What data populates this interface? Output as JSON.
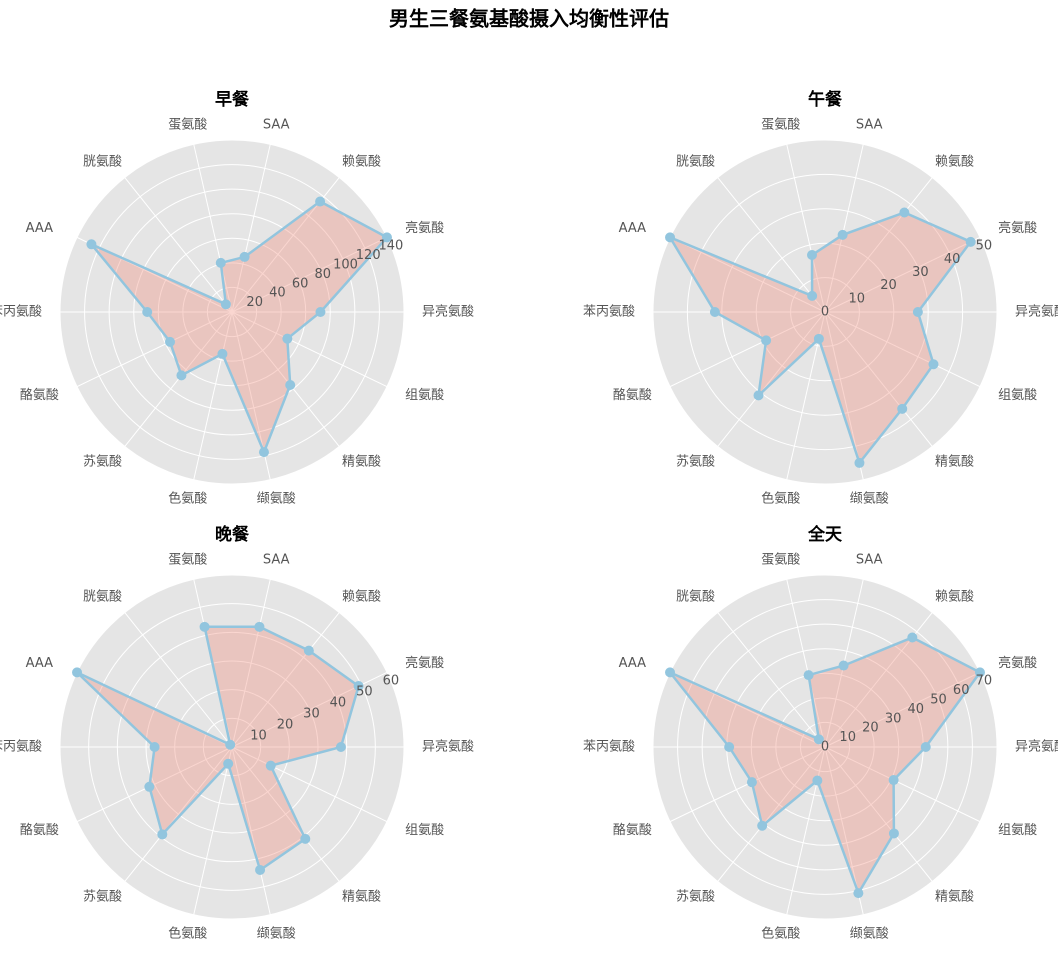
{
  "title": "男生三餐氨基酸摄入均衡性评估",
  "chart_data": [
    {
      "type": "radar",
      "title": "早餐",
      "categories": [
        "异亮氨酸",
        "亮氨酸",
        "赖氨酸",
        "SAA",
        "蛋氨酸",
        "胱氨酸",
        "AAA",
        "苯丙氨酸",
        "酪氨酸",
        "苏氨酸",
        "色氨酸",
        "缬氨酸",
        "精氨酸",
        "组氨酸"
      ],
      "series": [
        {
          "color": "#92c5de",
          "fill_color": "#f08a78",
          "values": [
            72,
            140,
            115,
            46,
            41,
            8,
            127,
            69,
            56,
            66,
            35,
            117,
            76,
            50
          ]
        }
      ],
      "ylim": [
        0,
        140
      ],
      "yticks": [
        20,
        40,
        60,
        80,
        100,
        120,
        140
      ],
      "grid": true
    },
    {
      "type": "radar",
      "title": "午餐",
      "categories": [
        "异亮氨酸",
        "亮氨酸",
        "赖氨酸",
        "SAA",
        "蛋氨酸",
        "胱氨酸",
        "AAA",
        "苯丙氨酸",
        "酪氨酸",
        "苏氨酸",
        "色氨酸",
        "缬氨酸",
        "精氨酸",
        "组氨酸"
      ],
      "series": [
        {
          "color": "#92c5de",
          "fill_color": "#f08a78",
          "values": [
            27,
            47,
            37,
            23,
            17,
            6,
            50,
            32,
            19,
            31,
            8,
            45,
            36,
            35
          ]
        }
      ],
      "ylim": [
        0,
        50
      ],
      "yticks": [
        0,
        10,
        20,
        30,
        40,
        50
      ],
      "grid": true
    },
    {
      "type": "radar",
      "title": "晚餐",
      "categories": [
        "异亮氨酸",
        "亮氨酸",
        "赖氨酸",
        "SAA",
        "蛋氨酸",
        "胱氨酸",
        "AAA",
        "苯丙氨酸",
        "酪氨酸",
        "苏氨酸",
        "色氨酸",
        "缬氨酸",
        "精氨酸",
        "组氨酸"
      ],
      "series": [
        {
          "color": "#92c5de",
          "fill_color": "#f08a78",
          "values": [
            38,
            49,
            43,
            43,
            43,
            1,
            60,
            27,
            32,
            39,
            6,
            44,
            41,
            15
          ]
        }
      ],
      "ylim": [
        0,
        60
      ],
      "yticks": [
        10,
        20,
        30,
        40,
        50,
        60
      ],
      "grid": true
    },
    {
      "type": "radar",
      "title": "全天",
      "categories": [
        "异亮氨酸",
        "亮氨酸",
        "赖氨酸",
        "SAA",
        "蛋氨酸",
        "胱氨酸",
        "AAA",
        "苯丙氨酸",
        "酪氨酸",
        "苏氨酸",
        "色氨酸",
        "缬氨酸",
        "精氨酸",
        "组氨酸"
      ],
      "series": [
        {
          "color": "#92c5de",
          "fill_color": "#f08a78",
          "values": [
            41,
            70,
            57,
            34,
            30,
            4,
            70,
            39,
            33,
            41,
            14,
            61,
            45,
            31
          ]
        }
      ],
      "ylim": [
        0,
        70
      ],
      "yticks": [
        0,
        10,
        20,
        30,
        40,
        50,
        60,
        70
      ],
      "grid": true
    }
  ]
}
